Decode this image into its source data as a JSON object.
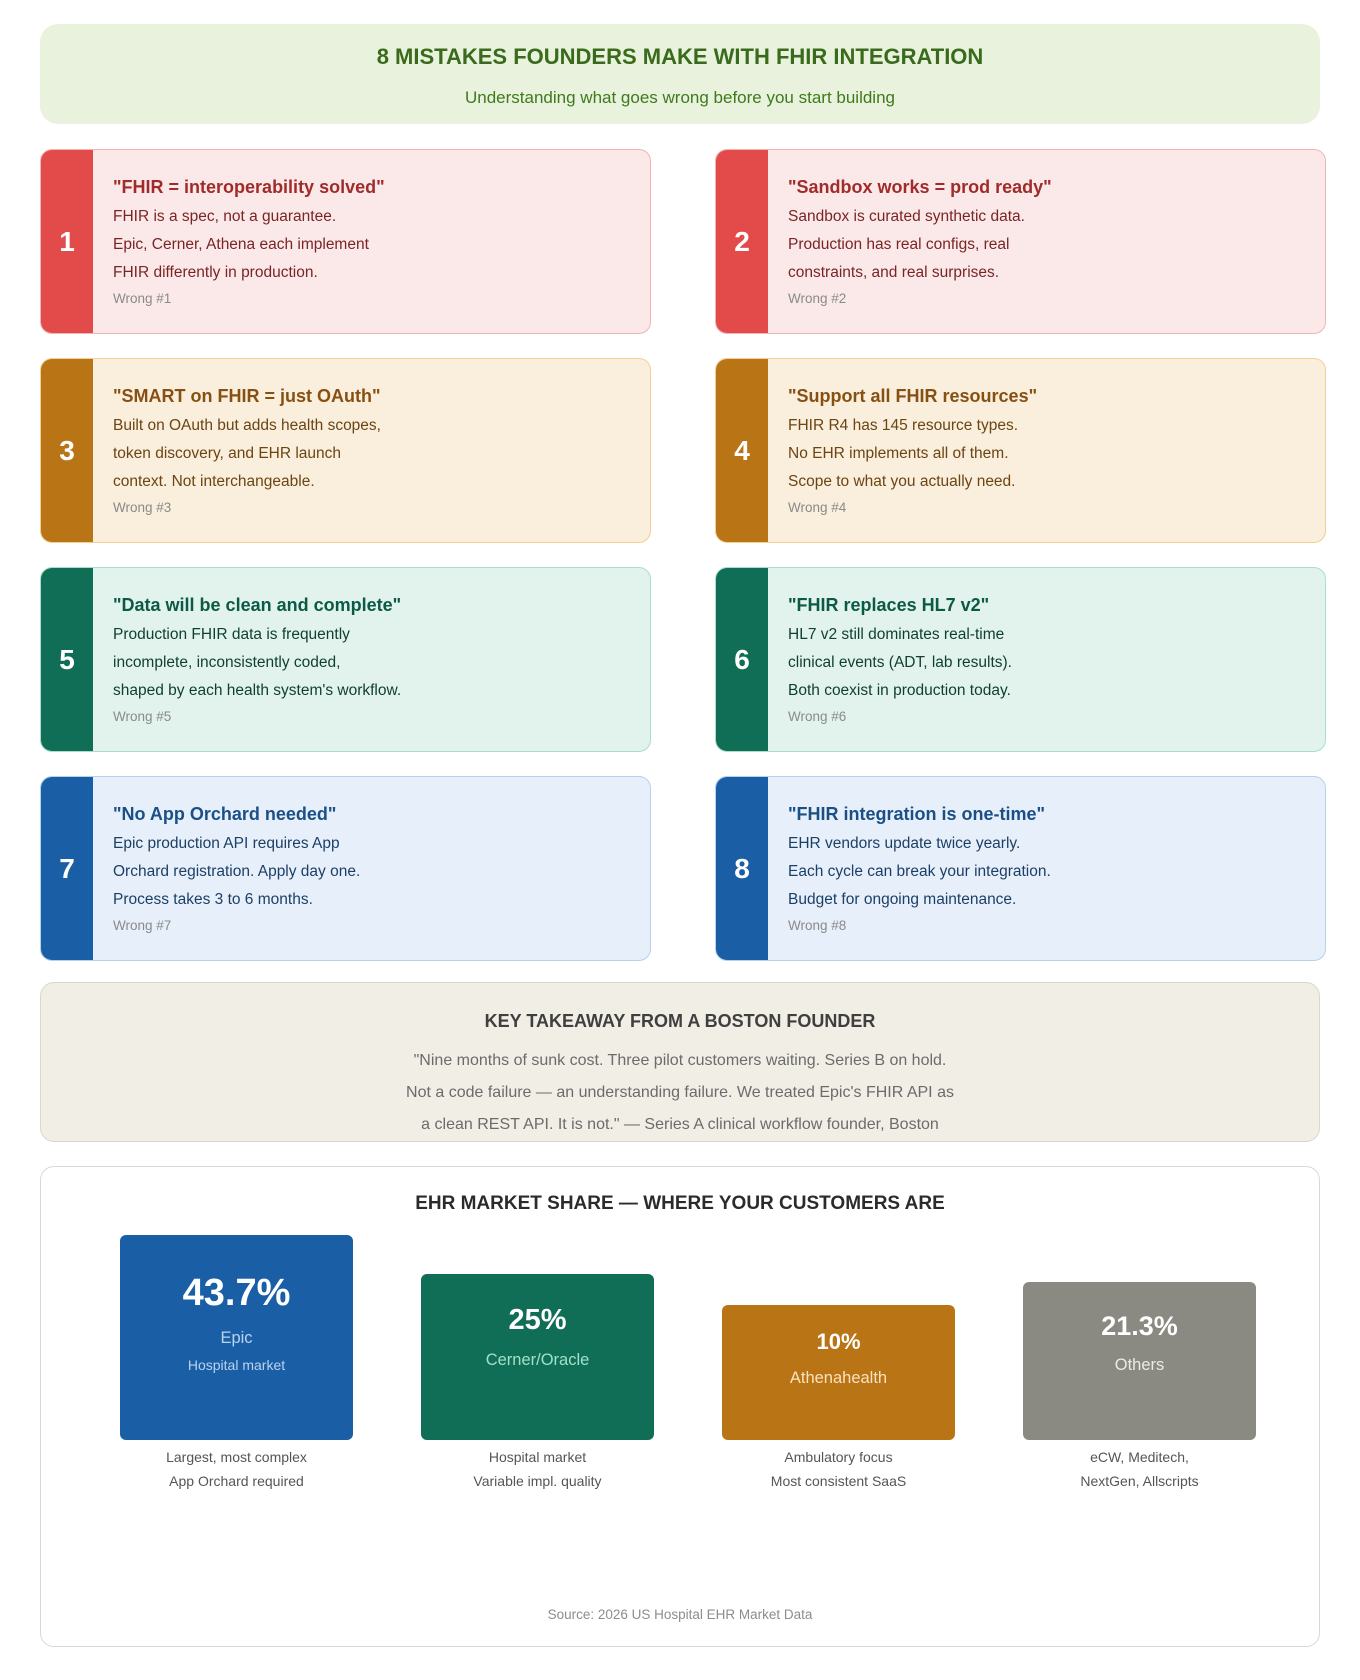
{
  "header": {
    "title": "8 MISTAKES FOUNDERS MAKE WITH FHIR INTEGRATION",
    "subtitle": "Understanding what goes wrong before you start building"
  },
  "cards": [
    {
      "number": "1",
      "title": "\"FHIR = interoperability solved\"",
      "lines": [
        "FHIR is a spec, not a guarantee.",
        "Epic, Cerner, Athena each implement",
        "FHIR differently in production."
      ],
      "tag": "Wrong #1",
      "theme": "red"
    },
    {
      "number": "2",
      "title": "\"Sandbox works = prod ready\"",
      "lines": [
        "Sandbox is curated synthetic data.",
        "Production has real configs, real",
        "constraints, and real surprises."
      ],
      "tag": "Wrong #2",
      "theme": "red"
    },
    {
      "number": "3",
      "title": "\"SMART on FHIR = just OAuth\"",
      "lines": [
        "Built on OAuth but adds health scopes,",
        "token discovery, and EHR launch",
        "context. Not interchangeable."
      ],
      "tag": "Wrong #3",
      "theme": "amber"
    },
    {
      "number": "4",
      "title": "\"Support all FHIR resources\"",
      "lines": [
        "FHIR R4 has 145 resource types.",
        "No EHR implements all of them.",
        "Scope to what you actually need."
      ],
      "tag": "Wrong #4",
      "theme": "amber"
    },
    {
      "number": "5",
      "title": "\"Data will be clean and complete\"",
      "lines": [
        "Production FHIR data is frequently",
        "incomplete, inconsistently coded,",
        "shaped by each health system's workflow."
      ],
      "tag": "Wrong #5",
      "theme": "green"
    },
    {
      "number": "6",
      "title": "\"FHIR replaces HL7 v2\"",
      "lines": [
        "HL7 v2 still dominates real-time",
        "clinical events (ADT, lab results).",
        "Both coexist in production today."
      ],
      "tag": "Wrong #6",
      "theme": "green"
    },
    {
      "number": "7",
      "title": "\"No App Orchard needed\"",
      "lines": [
        "Epic production API requires App",
        "Orchard registration. Apply day one.",
        "Process takes 3 to 6 months."
      ],
      "tag": "Wrong #7",
      "theme": "blue"
    },
    {
      "number": "8",
      "title": "\"FHIR integration is one-time\"",
      "lines": [
        "EHR vendors update twice yearly.",
        "Each cycle can break your integration.",
        "Budget for ongoing maintenance."
      ],
      "tag": "Wrong #8",
      "theme": "blue"
    }
  ],
  "takeaway": {
    "title": "KEY TAKEAWAY FROM A BOSTON FOUNDER",
    "lines": [
      "\"Nine months of sunk cost. Three pilot customers waiting. Series B on hold.",
      "Not a code failure — an understanding failure. We treated Epic's FHIR API as",
      "a clean REST API. It is not.\" — Series A clinical workflow founder, Boston"
    ]
  },
  "market": {
    "title": "EHR MARKET SHARE — WHERE YOUR CUSTOMERS ARE",
    "source": "Source: 2026 US Hospital EHR Market Data"
  },
  "chart_data": {
    "type": "bar",
    "title": "EHR MARKET SHARE — WHERE YOUR CUSTOMERS ARE",
    "categories": [
      "Epic",
      "Cerner/Oracle",
      "Athenahealth",
      "Others"
    ],
    "values": [
      43.7,
      25,
      10,
      21.3
    ],
    "value_labels": [
      "43.7%",
      "25%",
      "10%",
      "21.3%"
    ],
    "bar_sublabels": [
      "Hospital market",
      "",
      "",
      ""
    ],
    "notes": [
      [
        "Largest, most complex",
        "App Orchard required"
      ],
      [
        "Hospital market",
        "Variable impl. quality"
      ],
      [
        "Ambulatory focus",
        "Most consistent SaaS"
      ],
      [
        "eCW, Meditech,",
        "NextGen, Allscripts"
      ]
    ],
    "colors": [
      "#1a5ea6",
      "#106e57",
      "#b97415",
      "#8a8a82"
    ],
    "label_colors": [
      "#b9d3f0",
      "#9fe0c8",
      "#fbe2bd",
      "#ecebe4"
    ],
    "source": "Source: 2026 US Hospital EHR Market Data"
  }
}
